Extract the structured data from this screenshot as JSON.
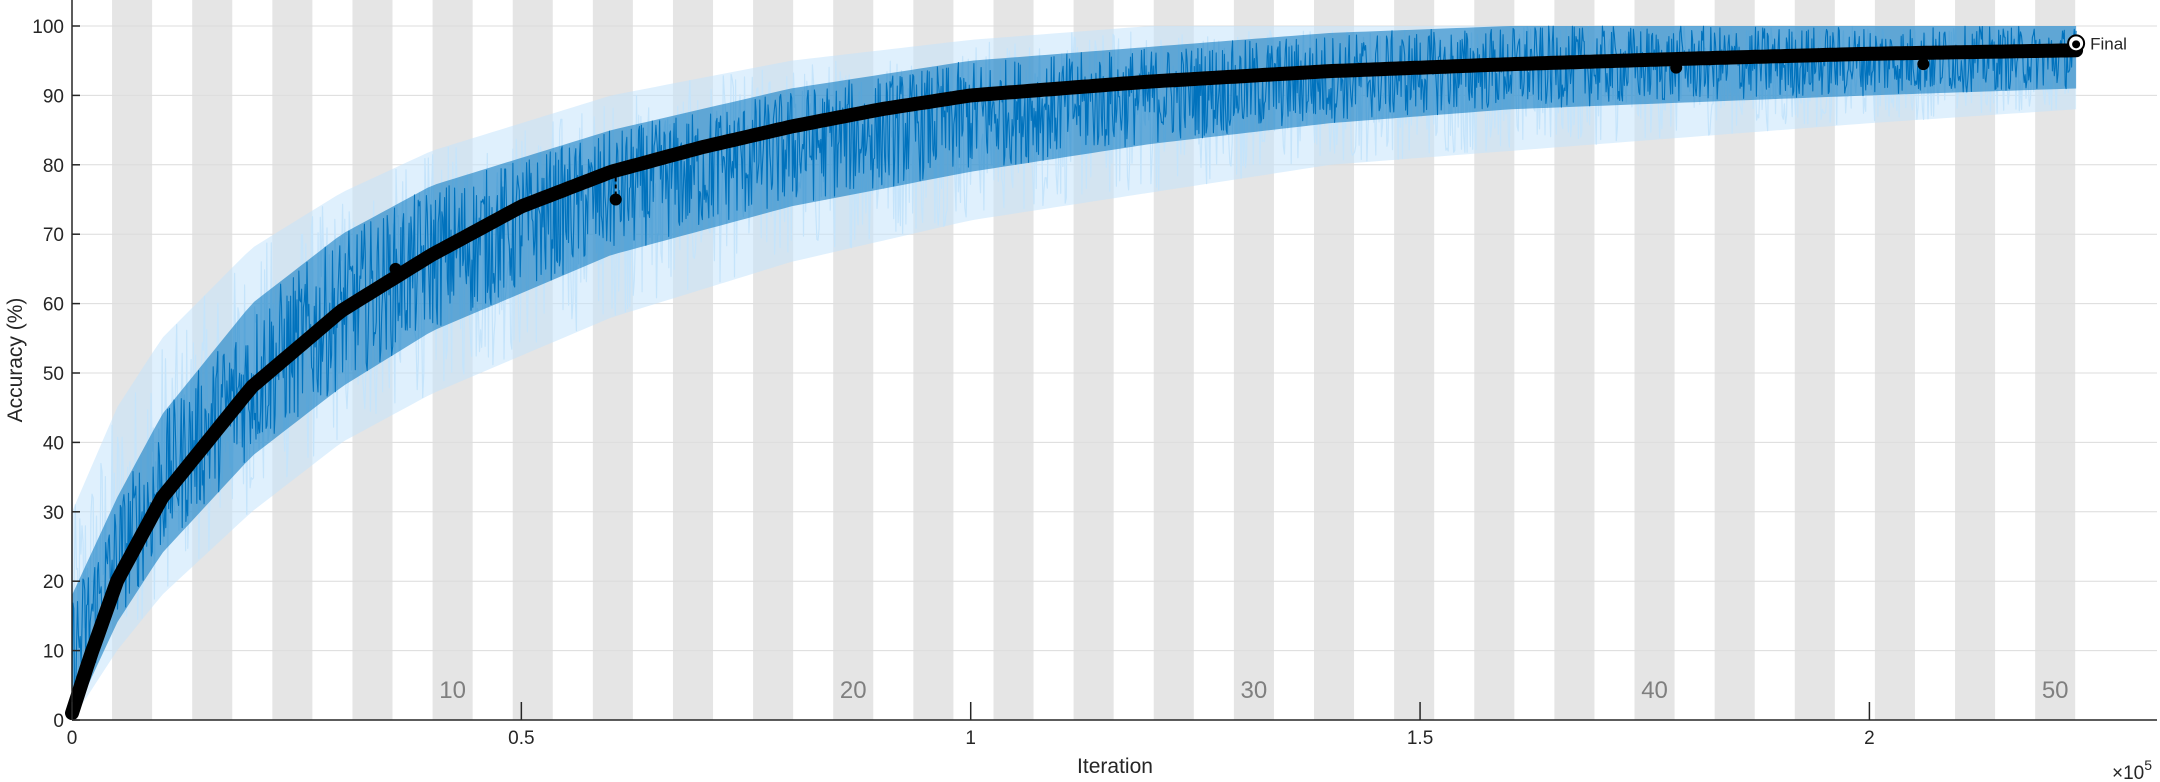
{
  "chart_data": {
    "type": "line",
    "xlabel": "Iteration",
    "ylabel": "Accuracy (%)",
    "x_exponent_label": "×10",
    "x_exponent_power": "5",
    "xlim": [
      0,
      232000
    ],
    "ylim": [
      0,
      100
    ],
    "x_ticks": [
      0,
      50000,
      100000,
      150000,
      200000
    ],
    "x_tick_labels": [
      "0",
      "0.5",
      "1",
      "1.5",
      "2"
    ],
    "y_ticks": [
      0,
      10,
      20,
      30,
      40,
      50,
      60,
      70,
      80,
      90,
      100
    ],
    "y_tick_labels": [
      "0",
      "10",
      "20",
      "30",
      "40",
      "50",
      "60",
      "70",
      "80",
      "90",
      "100"
    ],
    "grid": true,
    "epochs": {
      "count": 50,
      "iterations_per_epoch": 4458,
      "shading": "alternating gray bands",
      "labels": [
        "10",
        "20",
        "30",
        "40",
        "50"
      ],
      "label_epochs": [
        10,
        20,
        30,
        40,
        50
      ]
    },
    "series": [
      {
        "role": "mini-batch accuracy (raw)",
        "color": "#c5e4fb",
        "x": [
          0,
          5000,
          10000,
          20000,
          30000,
          40000,
          60000,
          80000,
          100000,
          120000,
          140000,
          160000,
          180000,
          200000,
          223000
        ],
        "values": [
          2,
          22,
          34,
          50,
          60,
          67,
          76,
          82,
          86,
          88.5,
          90.5,
          92,
          93,
          94,
          95
        ],
        "spread_low": [
          0,
          10,
          18,
          30,
          40,
          47,
          58,
          66,
          72,
          76,
          80,
          82,
          84,
          86,
          88
        ],
        "spread_high": [
          30,
          45,
          55,
          68,
          76,
          82,
          90,
          95,
          98,
          100,
          100,
          100,
          100,
          100,
          100
        ]
      },
      {
        "role": "mini-batch accuracy (smoothed)",
        "color": "#0072bd",
        "x": [
          0,
          5000,
          10000,
          20000,
          30000,
          40000,
          60000,
          80000,
          100000,
          120000,
          140000,
          160000,
          180000,
          200000,
          223000
        ],
        "values": [
          3,
          22,
          34,
          50,
          60,
          67,
          76,
          82,
          86,
          88.5,
          90.5,
          92,
          93,
          94,
          95
        ],
        "spread_low": [
          0,
          14,
          24,
          38,
          48,
          56,
          67,
          74,
          79,
          83,
          86,
          88,
          89,
          90,
          91
        ],
        "spread_high": [
          18,
          32,
          44,
          60,
          70,
          77,
          85,
          91,
          95,
          97,
          99,
          100,
          100,
          100,
          100
        ]
      },
      {
        "role": "validation accuracy",
        "color": "#000000",
        "x": [
          0,
          2000,
          5000,
          10000,
          20000,
          30000,
          40000,
          50000,
          60000,
          70000,
          80000,
          90000,
          100000,
          120000,
          140000,
          160000,
          180000,
          200000,
          223000
        ],
        "values": [
          1,
          9,
          20,
          32,
          48,
          59,
          67,
          74,
          79,
          82.5,
          85.5,
          88,
          90,
          92,
          93.5,
          94.5,
          95.3,
          96,
          96.5
        ],
        "outliers": [
          {
            "x": 36000,
            "y": 65
          },
          {
            "x": 60500,
            "y": 75
          },
          {
            "x": 178500,
            "y": 94
          },
          {
            "x": 206000,
            "y": 94.5
          }
        ]
      }
    ],
    "final_marker": {
      "x": 223000,
      "y": 97.5,
      "label": "Final"
    }
  }
}
